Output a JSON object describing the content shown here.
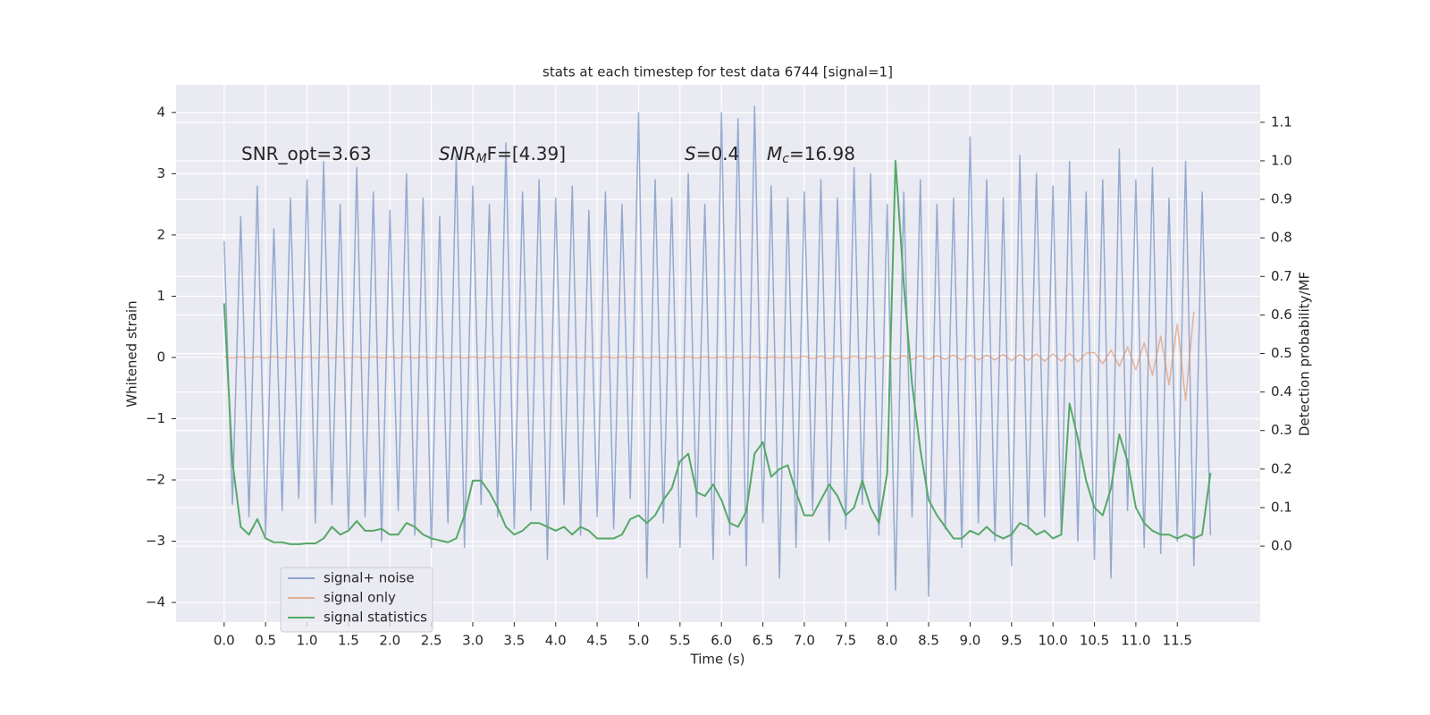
{
  "chart_data": {
    "type": "line",
    "title": "stats at each timestep for test data 6744 [signal=1]",
    "x_label": "Time (s)",
    "y_label": "Whitened strain",
    "y2_label": "Detection probability/MF",
    "annotations": [
      {
        "text": "SNR_opt=3.63"
      },
      {
        "italic": "SNR",
        "sub": "M",
        "text": "F=[4.39]"
      },
      {
        "italic": "S",
        "text": "=0.4"
      },
      {
        "italic": "M",
        "sub": "c",
        "text": "=16.98"
      }
    ],
    "x": [
      0.0,
      0.1,
      0.2,
      0.3,
      0.4,
      0.5,
      0.6,
      0.7,
      0.8,
      0.9,
      1.0,
      1.1,
      1.2,
      1.3,
      1.4,
      1.5,
      1.6,
      1.7,
      1.8,
      1.9,
      2.0,
      2.1,
      2.2,
      2.3,
      2.4,
      2.5,
      2.6,
      2.7,
      2.8,
      2.9,
      3.0,
      3.1,
      3.2,
      3.3,
      3.4,
      3.5,
      3.6,
      3.7,
      3.8,
      3.9,
      4.0,
      4.1,
      4.2,
      4.3,
      4.4,
      4.5,
      4.6,
      4.7,
      4.8,
      4.9,
      5.0,
      5.1,
      5.2,
      5.3,
      5.4,
      5.5,
      5.6,
      5.7,
      5.8,
      5.9,
      6.0,
      6.1,
      6.2,
      6.3,
      6.4,
      6.5,
      6.6,
      6.7,
      6.8,
      6.9,
      7.0,
      7.1,
      7.2,
      7.3,
      7.4,
      7.5,
      7.6,
      7.7,
      7.8,
      7.9,
      8.0,
      8.1,
      8.2,
      8.3,
      8.4,
      8.5,
      8.6,
      8.7,
      8.8,
      8.9,
      9.0,
      9.1,
      9.2,
      9.3,
      9.4,
      9.5,
      9.6,
      9.7,
      9.8,
      9.9,
      10.0,
      10.1,
      10.2,
      10.3,
      10.4,
      10.5,
      10.6,
      10.7,
      10.8,
      10.9,
      11.0,
      11.1,
      11.2,
      11.3,
      11.4,
      11.5,
      11.6,
      11.7,
      11.8,
      11.9
    ],
    "series": [
      {
        "name": "signal+ noise",
        "color": "#4c72b0",
        "values": [
          1.9,
          -2.4,
          2.3,
          -2.6,
          2.8,
          -2.9,
          2.1,
          -2.5,
          2.6,
          -2.3,
          2.9,
          -2.7,
          3.2,
          -2.4,
          2.5,
          -2.8,
          3.1,
          -2.6,
          2.7,
          -3.0,
          2.4,
          -2.5,
          3.0,
          -2.9,
          2.6,
          -3.1,
          2.3,
          -2.7,
          3.3,
          -3.1,
          2.8,
          -2.4,
          2.5,
          -2.6,
          3.5,
          -2.8,
          2.7,
          -2.5,
          2.9,
          -3.3,
          2.6,
          -2.4,
          2.8,
          -2.9,
          2.4,
          -2.6,
          2.7,
          -2.8,
          2.5,
          -2.3,
          4.0,
          -3.6,
          2.9,
          -2.7,
          2.6,
          -3.1,
          3.0,
          -2.6,
          2.5,
          -3.3,
          4.0,
          -2.9,
          3.9,
          -3.4,
          4.1,
          -2.7,
          2.8,
          -3.6,
          2.6,
          -3.1,
          2.7,
          -2.5,
          2.9,
          -3.0,
          2.6,
          -2.8,
          3.1,
          -2.4,
          3.0,
          -2.9,
          2.5,
          -3.8,
          2.7,
          -2.6,
          2.9,
          -3.9,
          2.5,
          -2.8,
          2.6,
          -3.1,
          3.6,
          -2.7,
          2.9,
          -3.0,
          2.6,
          -3.4,
          3.3,
          -2.8,
          3.0,
          -2.6,
          2.8,
          -2.9,
          3.2,
          -3.0,
          2.7,
          -3.3,
          2.9,
          -3.6,
          3.4,
          -2.5,
          2.9,
          -3.1,
          3.1,
          -3.2,
          2.6,
          -3.0,
          3.2,
          -3.4,
          2.7,
          -2.9
        ]
      },
      {
        "name": "signal only",
        "color": "#dd8452",
        "values": [
          0.01,
          -0.01,
          0.01,
          -0.01,
          0.01,
          -0.01,
          0.01,
          -0.01,
          0.01,
          -0.01,
          0.01,
          -0.01,
          0.01,
          -0.01,
          0.01,
          -0.01,
          0.01,
          -0.01,
          0.01,
          -0.01,
          0.01,
          -0.01,
          0.01,
          -0.01,
          0.01,
          -0.01,
          0.01,
          -0.01,
          0.01,
          -0.01,
          0.01,
          -0.01,
          0.01,
          -0.01,
          0.01,
          -0.01,
          0.01,
          -0.01,
          0.01,
          -0.01,
          0.01,
          -0.01,
          0.01,
          -0.01,
          0.01,
          -0.01,
          0.01,
          -0.01,
          0.01,
          -0.01,
          0.01,
          -0.01,
          0.01,
          -0.01,
          0.01,
          -0.01,
          0.01,
          -0.01,
          0.01,
          -0.01,
          0.01,
          -0.01,
          0.01,
          -0.01,
          0.01,
          -0.01,
          0.01,
          -0.01,
          0.01,
          -0.01,
          0.02,
          -0.02,
          0.02,
          -0.02,
          0.02,
          -0.02,
          0.02,
          -0.02,
          0.02,
          -0.02,
          0.03,
          -0.03,
          0.03,
          -0.03,
          0.03,
          -0.03,
          0.03,
          -0.03,
          0.04,
          -0.04,
          0.04,
          -0.04,
          0.04,
          -0.04,
          0.05,
          -0.05,
          0.05,
          -0.05,
          0.06,
          -0.06,
          0.06,
          -0.06,
          0.07,
          -0.07,
          0.07,
          0.08,
          -0.1,
          0.12,
          -0.14,
          0.17,
          -0.2,
          0.24,
          -0.29,
          0.35,
          -0.45,
          0.55,
          -0.7,
          0.75,
          null,
          null
        ]
      },
      {
        "name": "signal statistics",
        "color": "#55a868",
        "axis": "y2",
        "values": [
          0.63,
          0.22,
          0.05,
          0.03,
          0.07,
          0.02,
          0.01,
          0.01,
          0.005,
          0.005,
          0.007,
          0.007,
          0.02,
          0.05,
          0.03,
          0.04,
          0.065,
          0.04,
          0.04,
          0.045,
          0.03,
          0.03,
          0.06,
          0.05,
          0.03,
          0.02,
          0.015,
          0.01,
          0.02,
          0.08,
          0.17,
          0.17,
          0.14,
          0.1,
          0.05,
          0.03,
          0.04,
          0.06,
          0.06,
          0.05,
          0.04,
          0.05,
          0.03,
          0.05,
          0.04,
          0.02,
          0.02,
          0.02,
          0.03,
          0.07,
          0.08,
          0.06,
          0.08,
          0.12,
          0.15,
          0.22,
          0.24,
          0.14,
          0.13,
          0.16,
          0.12,
          0.06,
          0.05,
          0.09,
          0.24,
          0.27,
          0.18,
          0.2,
          0.21,
          0.14,
          0.08,
          0.08,
          0.12,
          0.16,
          0.13,
          0.08,
          0.1,
          0.17,
          0.1,
          0.06,
          0.19,
          1.0,
          0.68,
          0.42,
          0.25,
          0.12,
          0.08,
          0.05,
          0.02,
          0.02,
          0.04,
          0.03,
          0.05,
          0.03,
          0.02,
          0.03,
          0.06,
          0.05,
          0.03,
          0.04,
          0.02,
          0.03,
          0.37,
          0.28,
          0.17,
          0.1,
          0.08,
          0.15,
          0.29,
          0.22,
          0.1,
          0.06,
          0.04,
          0.03,
          0.03,
          0.02,
          0.03,
          0.02,
          0.03,
          0.19
        ]
      }
    ],
    "xlim": [
      -0.58,
      12.5
    ],
    "xticks": [
      {
        "value": 0,
        "label": "0.0"
      },
      0.5,
      {
        "value": 1,
        "label": "1.0"
      },
      1.5,
      {
        "value": 2,
        "label": "2.0"
      },
      2.5,
      {
        "value": 3,
        "label": "3.0"
      },
      3.5,
      {
        "value": 4,
        "label": "4.0"
      },
      4.5,
      {
        "value": 5,
        "label": "5.0"
      },
      5.5,
      {
        "value": 6,
        "label": "6.0"
      },
      6.5,
      {
        "value": 7,
        "label": "7.0"
      },
      7.5,
      {
        "value": 8,
        "label": "8.0"
      },
      8.5,
      {
        "value": 9,
        "label": "9.0"
      },
      9.5,
      {
        "value": 10,
        "label": "10.0"
      },
      10.5,
      {
        "value": 11,
        "label": "11.0"
      },
      11.5
    ],
    "ylim": [
      -4.32,
      4.45
    ],
    "yticks": [
      {
        "value": -4,
        "label": "−4"
      },
      {
        "value": -3,
        "label": "−3"
      },
      {
        "value": -2,
        "label": "−2"
      },
      {
        "value": -1,
        "label": "−1"
      },
      0,
      1,
      2,
      3,
      4
    ],
    "y2lim": [
      -0.197,
      1.197
    ],
    "y2ticks": [
      {
        "value": 0,
        "label": "0.0"
      },
      0.1,
      0.2,
      0.3,
      0.4,
      0.5,
      0.6,
      0.7,
      0.8,
      0.9,
      {
        "value": 1,
        "label": "1.0"
      },
      1.1
    ],
    "grid": true,
    "legend": "lower left"
  }
}
